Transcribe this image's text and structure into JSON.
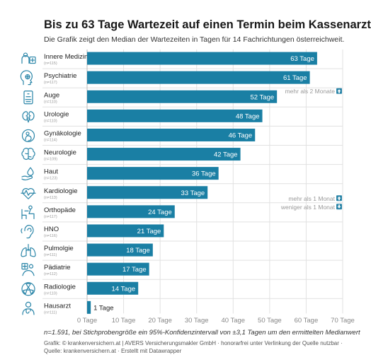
{
  "title": "Bis zu 63 Tage Wartezeit auf einen Termin beim Kassenarzt",
  "subtitle": "Die Grafik zeigt den Median der Wartezeiten in Tagen für 14 Fachrichtungen österreichweit.",
  "note": "n=1.591, bei Stichprobengröße ein 95%-Konfidenzintervall von ±3,1 Tagen um den ermittelten Medianwert",
  "credit_line1": "Grafik: © krankenversichern.at | AVERS Versicherungsmakler GmbH · honorarfrei unter Verlinkung der Quelle nutzbar ·",
  "credit_line2": "Quelle: krankenversichern.at · Erstellt mit Datawrapper",
  "colors": {
    "bar": "#1a7fa4",
    "icon": "#2a85a8",
    "grid": "#e1e1e1",
    "marker": "#9a9a9a"
  },
  "chart_data": {
    "type": "bar",
    "orientation": "horizontal",
    "xlim": [
      0,
      70
    ],
    "x_ticks": [
      0,
      10,
      20,
      30,
      40,
      50,
      60,
      70
    ],
    "x_tick_labels": [
      "0 Tage",
      "10 Tage",
      "20 Tage",
      "30 Tage",
      "40 Tage",
      "50 Tage",
      "60 Tage",
      "70 Tage"
    ],
    "grid": true,
    "categories": [
      {
        "label": "Innere Medizin",
        "n": "(n=115)",
        "value": 63,
        "value_label": "63 Tage",
        "icon": "internal-medicine-icon"
      },
      {
        "label": "Psychiatrie",
        "n": "(n=117)",
        "value": 61,
        "value_label": "61 Tage",
        "icon": "psychiatry-head-icon"
      },
      {
        "label": "Auge",
        "n": "(n=110)",
        "value": 52,
        "value_label": "52 Tage",
        "icon": "eye-chart-icon"
      },
      {
        "label": "Urologie",
        "n": "(n=110)",
        "value": 48,
        "value_label": "48 Tage",
        "icon": "kidney-icon"
      },
      {
        "label": "Gynäkologie",
        "n": "(n=114)",
        "value": 46,
        "value_label": "46 Tage",
        "icon": "pregnancy-icon"
      },
      {
        "label": "Neurologie",
        "n": "(n=109)",
        "value": 42,
        "value_label": "42 Tage",
        "icon": "brain-icon"
      },
      {
        "label": "Haut",
        "n": "(n=123)",
        "value": 36,
        "value_label": "36 Tage",
        "icon": "skin-drop-icon"
      },
      {
        "label": "Kardiologie",
        "n": "(n=113)",
        "value": 33,
        "value_label": "33 Tage",
        "icon": "heart-pulse-icon"
      },
      {
        "label": "Orthopäde",
        "n": "(n=117)",
        "value": 24,
        "value_label": "24 Tage",
        "icon": "orthopedic-chair-icon"
      },
      {
        "label": "HNO",
        "n": "(n=116)",
        "value": 21,
        "value_label": "21 Tage",
        "icon": "ear-icon"
      },
      {
        "label": "Pulmolgie",
        "n": "(n=111)",
        "value": 18,
        "value_label": "18 Tage",
        "icon": "lungs-icon"
      },
      {
        "label": "Pädiatrie",
        "n": "(n=112)",
        "value": 17,
        "value_label": "17 Tage",
        "icon": "child-care-icon"
      },
      {
        "label": "Radiologie",
        "n": "(n=110)",
        "value": 14,
        "value_label": "14 Tage",
        "icon": "radiation-icon"
      },
      {
        "label": "Hausarzt",
        "n": "(n=111)",
        "value": 1,
        "value_label": "1 Tage",
        "icon": "doctor-icon"
      }
    ],
    "annotations": [
      {
        "text": "mehr als 2 Monate",
        "after_index": 1
      },
      {
        "text": "mehr als 1 Monat",
        "after_index": 7
      },
      {
        "text": "weniger als 1 Monat",
        "after_index": 7
      }
    ]
  }
}
